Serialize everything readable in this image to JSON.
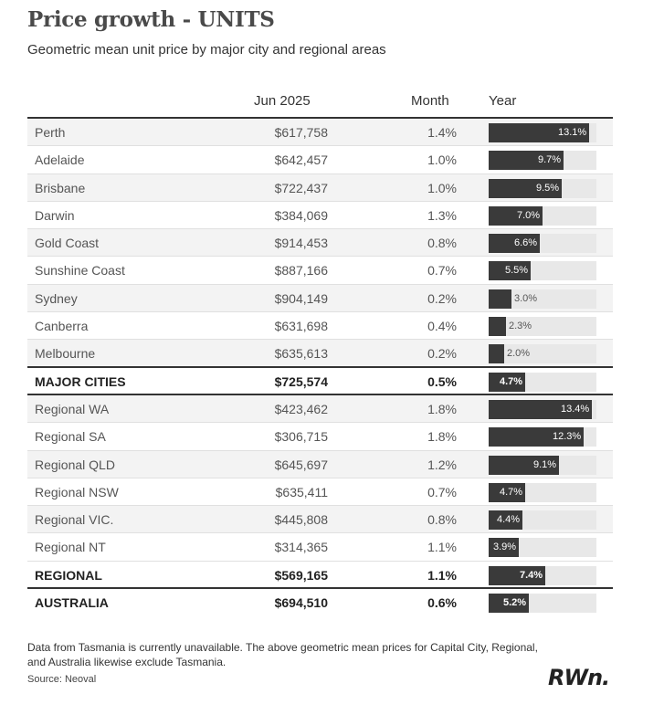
{
  "header": {
    "title": "Price growth  - UNITS",
    "subtitle": "Geometric mean unit price by major city and regional areas"
  },
  "table": {
    "col_price": "Jun 2025",
    "col_month": "Month",
    "col_year": "Year"
  },
  "chart_data": {
    "type": "table",
    "columns": [
      "",
      "Jun 2025",
      "Month",
      "Year"
    ],
    "rows": [
      {
        "name": "Perth",
        "price": "$617,758",
        "month": "1.4%",
        "year": 13.1,
        "year_label": "13.1%",
        "kind": "city"
      },
      {
        "name": "Adelaide",
        "price": "$642,457",
        "month": "1.0%",
        "year": 9.7,
        "year_label": "9.7%",
        "kind": "city"
      },
      {
        "name": "Brisbane",
        "price": "$722,437",
        "month": "1.0%",
        "year": 9.5,
        "year_label": "9.5%",
        "kind": "city"
      },
      {
        "name": "Darwin",
        "price": "$384,069",
        "month": "1.3%",
        "year": 7.0,
        "year_label": "7.0%",
        "kind": "city"
      },
      {
        "name": "Gold Coast",
        "price": "$914,453",
        "month": "0.8%",
        "year": 6.6,
        "year_label": "6.6%",
        "kind": "city"
      },
      {
        "name": "Sunshine Coast",
        "price": "$887,166",
        "month": "0.7%",
        "year": 5.5,
        "year_label": "5.5%",
        "kind": "city"
      },
      {
        "name": "Sydney",
        "price": "$904,149",
        "month": "0.2%",
        "year": 3.0,
        "year_label": "3.0%",
        "kind": "city"
      },
      {
        "name": "Canberra",
        "price": "$631,698",
        "month": "0.4%",
        "year": 2.3,
        "year_label": "2.3%",
        "kind": "city"
      },
      {
        "name": "Melbourne",
        "price": "$635,613",
        "month": "0.2%",
        "year": 2.0,
        "year_label": "2.0%",
        "kind": "city"
      },
      {
        "name": "MAJOR CITIES",
        "price": "$725,574",
        "month": "0.5%",
        "year": 4.7,
        "year_label": "4.7%",
        "kind": "summary"
      },
      {
        "name": "Regional WA",
        "price": "$423,462",
        "month": "1.8%",
        "year": 13.4,
        "year_label": "13.4%",
        "kind": "regional"
      },
      {
        "name": "Regional SA",
        "price": "$306,715",
        "month": "1.8%",
        "year": 12.3,
        "year_label": "12.3%",
        "kind": "regional"
      },
      {
        "name": "Regional QLD",
        "price": "$645,697",
        "month": "1.2%",
        "year": 9.1,
        "year_label": "9.1%",
        "kind": "regional"
      },
      {
        "name": "Regional NSW",
        "price": "$635,411",
        "month": "0.7%",
        "year": 4.7,
        "year_label": "4.7%",
        "kind": "regional"
      },
      {
        "name": "Regional VIC.",
        "price": "$445,808",
        "month": "0.8%",
        "year": 4.4,
        "year_label": "4.4%",
        "kind": "regional"
      },
      {
        "name": "Regional NT",
        "price": "$314,365",
        "month": "1.1%",
        "year": 3.9,
        "year_label": "3.9%",
        "kind": "regional"
      },
      {
        "name": "REGIONAL",
        "price": "$569,165",
        "month": "1.1%",
        "year": 7.4,
        "year_label": "7.4%",
        "kind": "summary"
      },
      {
        "name": "AUSTRALIA",
        "price": "$694,510",
        "month": "0.6%",
        "year": 5.2,
        "year_label": "5.2%",
        "kind": "summary"
      }
    ],
    "year_scale_max": 14.0,
    "bar_color": "#3a3a3a",
    "track_color": "#e8e8e8"
  },
  "footer": {
    "note": "Data from Tasmania is currently unavailable. The above geometric mean prices for Capital City, Regional, and Australia likewise exclude Tasmania.",
    "source": "Source: Neoval",
    "logo": "RWn."
  }
}
